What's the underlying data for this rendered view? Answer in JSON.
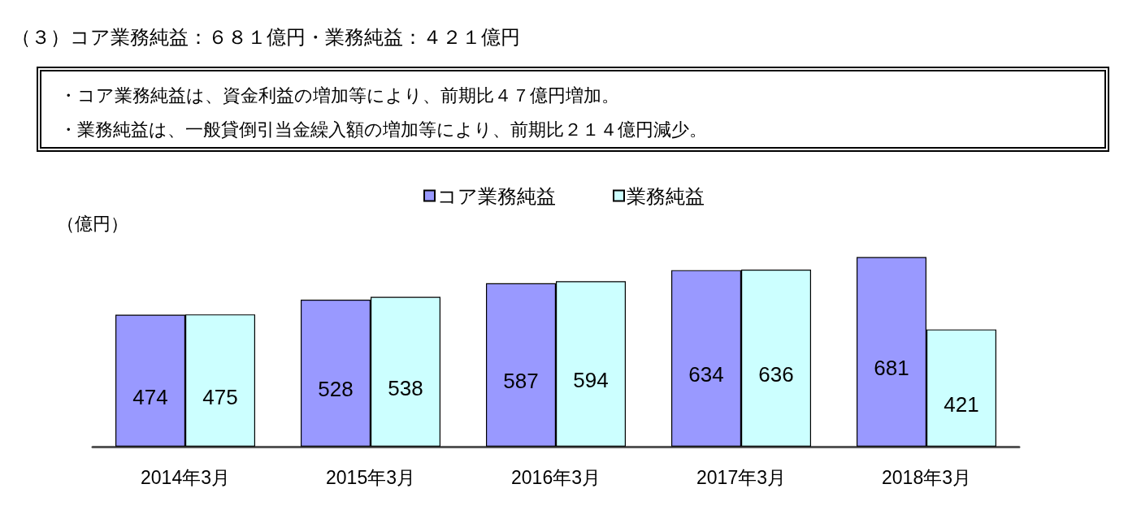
{
  "chart_data": {
    "type": "bar",
    "title": "（３）コア業務純益：６８１億円・業務純益：４２１億円",
    "annotations": [
      "・コア業務純益は、資金利益の増加等により、前期比４７億円増加。",
      "・業務純益は、一般貸倒引当金繰入額の増加等により、前期比２１４億円減少。"
    ],
    "ylabel": "（億円）",
    "categories": [
      "2014年3月",
      "2015年3月",
      "2016年3月",
      "2017年3月",
      "2018年3月"
    ],
    "series": [
      {
        "name": "コア業務純益",
        "color": "#9999ff",
        "values": [
          474,
          528,
          587,
          634,
          681
        ]
      },
      {
        "name": "業務純益",
        "color": "#ccffff",
        "values": [
          475,
          538,
          594,
          636,
          421
        ]
      }
    ],
    "data_labels": true,
    "legend": "top",
    "grid": false
  }
}
